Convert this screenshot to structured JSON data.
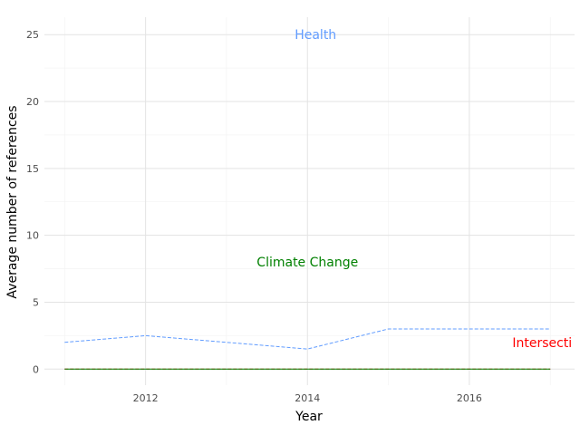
{
  "chart_data": {
    "type": "line",
    "title": "",
    "xlabel": "Year",
    "ylabel": "Average number of references",
    "xlim": [
      2010.75,
      2017.3
    ],
    "ylim": [
      -1.2,
      26.3
    ],
    "x_ticks": [
      2012,
      2014,
      2016
    ],
    "y_ticks": [
      0,
      5,
      10,
      15,
      20,
      25
    ],
    "grid": true,
    "x": [
      2011,
      2012,
      2013,
      2014,
      2015,
      2016,
      2017
    ],
    "series": [
      {
        "name": "Health",
        "color": "#619CFF",
        "dash": "dashed",
        "values": [
          2.0,
          2.5,
          2.0,
          1.5,
          3.0,
          3.0,
          3.0
        ],
        "label": {
          "text": "Health",
          "x": 2014.1,
          "y": 25
        }
      },
      {
        "name": "Climate Change",
        "color": "#008000",
        "dash": "solid",
        "values": [
          0,
          0,
          0,
          0,
          0,
          0,
          0
        ],
        "label": {
          "text": "Climate Change",
          "x": 2014,
          "y": 8
        }
      },
      {
        "name": "Intersecti",
        "color": "#FF0000",
        "dash": "dashed",
        "values": [
          0,
          0,
          0,
          0,
          0,
          0,
          0
        ],
        "label": {
          "text": "Intersecti",
          "x": 2016.9,
          "y": 2
        }
      }
    ]
  }
}
